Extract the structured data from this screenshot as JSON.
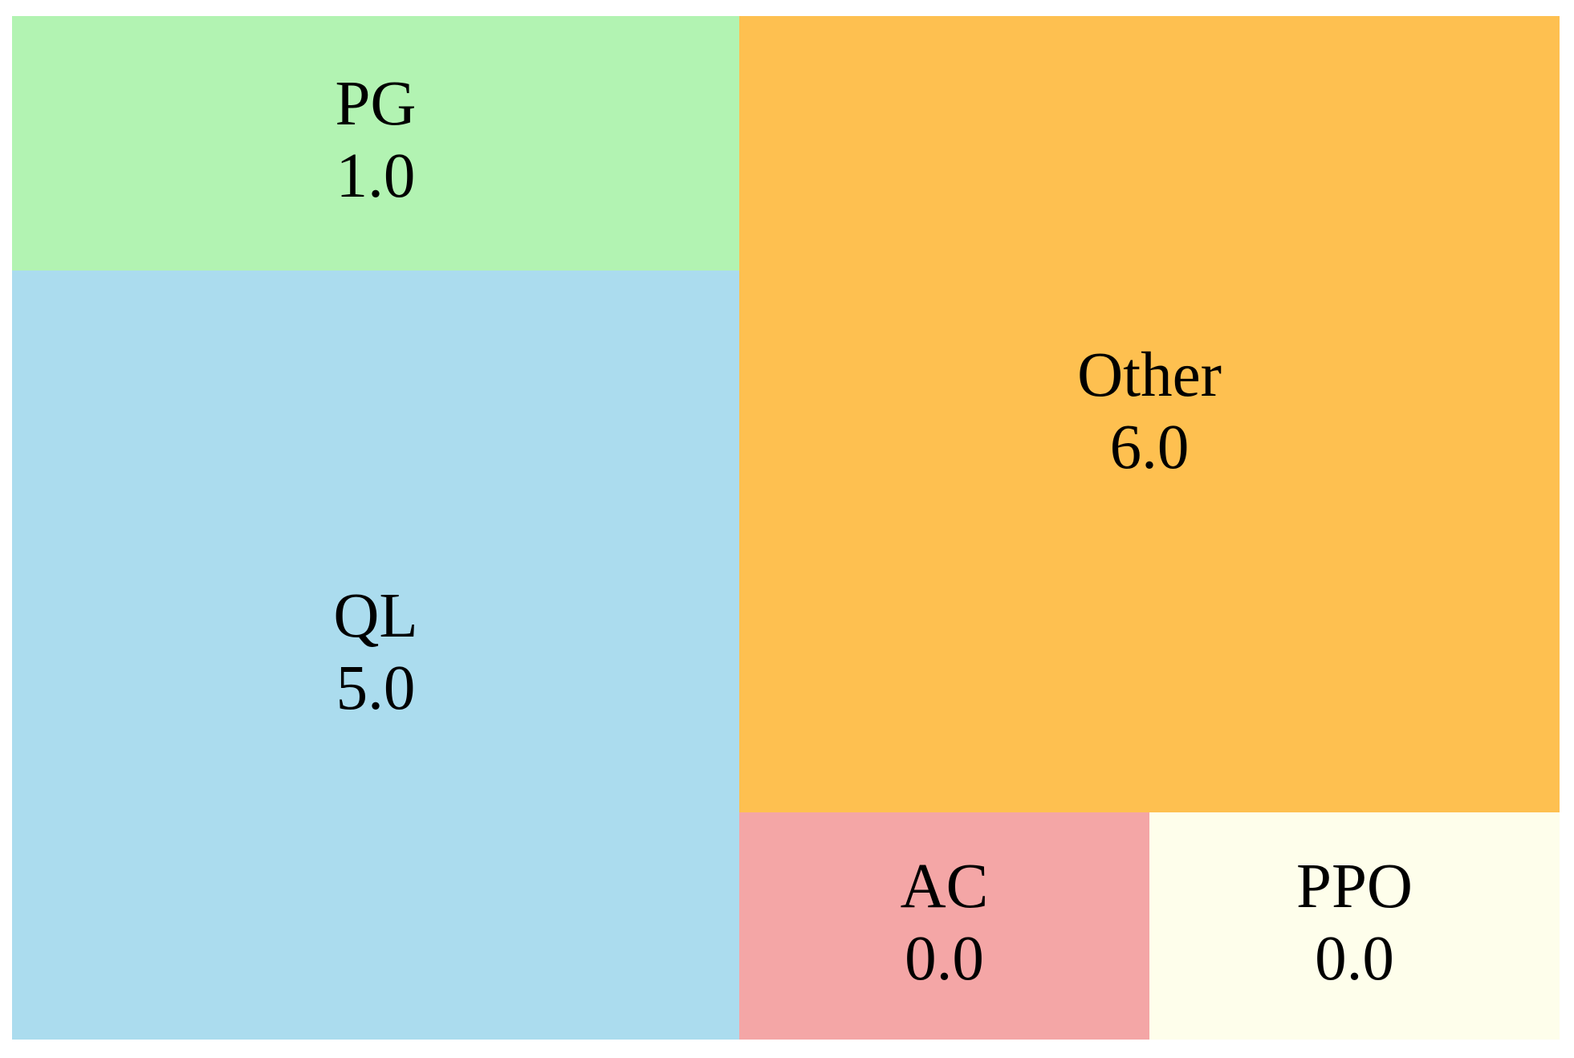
{
  "chart_data": {
    "type": "treemap",
    "items": [
      {
        "label": "Other",
        "value_text": "6.0",
        "value": 6.0,
        "color": "#fec050"
      },
      {
        "label": "QL",
        "value_text": "5.0",
        "value": 5.0,
        "color": "#abdcee"
      },
      {
        "label": "PG",
        "value_text": "1.0",
        "value": 1.0,
        "color": "#b2f3b2"
      },
      {
        "label": "AC",
        "value_text": "0.0",
        "value": 0.0,
        "color": "#f4a6a6"
      },
      {
        "label": "PPO",
        "value_text": "0.0",
        "value": 0.0,
        "color": "#fefeeb"
      }
    ]
  }
}
